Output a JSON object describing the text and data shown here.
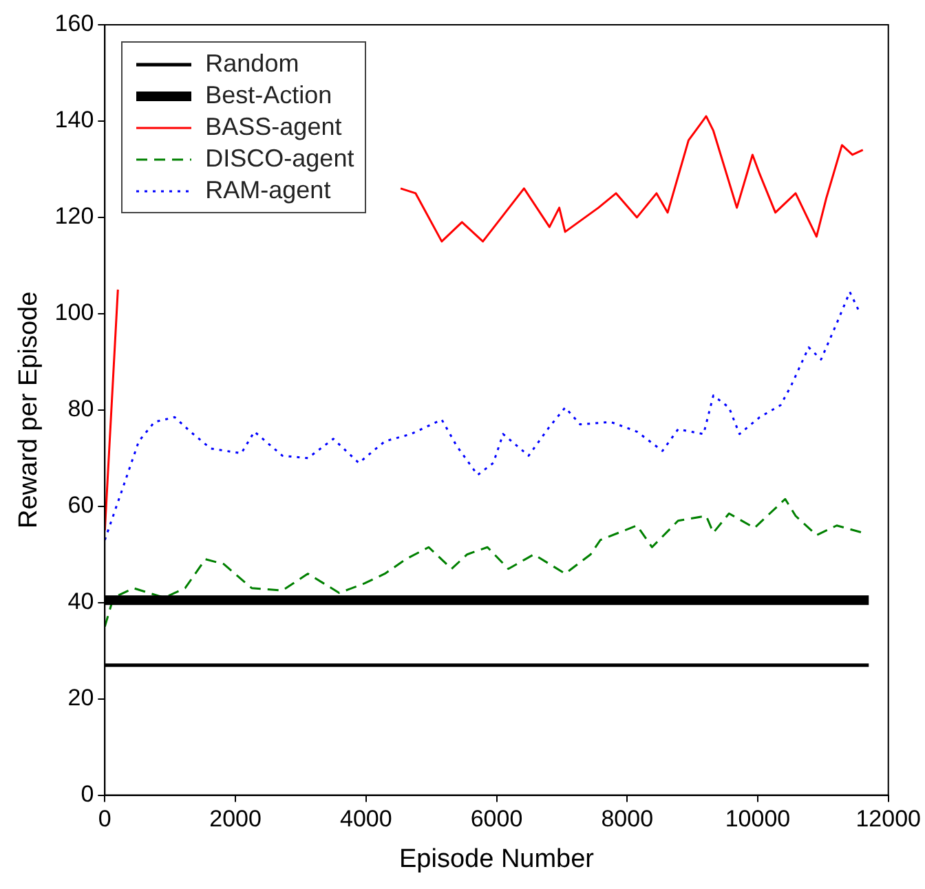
{
  "chart_data": {
    "type": "line",
    "xlabel": "Episode Number",
    "ylabel": "Reward per Episode",
    "xlim": [
      0,
      12000
    ],
    "xticks": [
      0,
      2000,
      4000,
      6000,
      8000,
      10000,
      12000
    ],
    "ylim": [
      0,
      160
    ],
    "yticks": [
      0,
      20,
      40,
      60,
      80,
      100,
      120,
      140,
      160
    ],
    "grid": false,
    "legend": "top left",
    "marker": "none",
    "series": [
      {
        "name": "Random",
        "color": "#000000",
        "line_style": "solid",
        "x": [
          0,
          11700
        ],
        "values": [
          27,
          27
        ]
      },
      {
        "name": "Best-Action",
        "color": "#000000",
        "line_style": "solid",
        "x": [
          0,
          11700
        ],
        "values": [
          40.5,
          40.5
        ]
      },
      {
        "name": "BASS-agent",
        "color": "#ff0000",
        "line_style": "solid",
        "x": [
          0,
          100,
          200,
          300,
          4530,
          4760,
          5160,
          5470,
          5790,
          6420,
          6810,
          6960,
          7050,
          7560,
          7830,
          8150,
          8450,
          8620,
          8940,
          9210,
          9320,
          9680,
          9920,
          10030,
          10270,
          10580,
          10900,
          11050,
          11290,
          11450,
          11610
        ],
        "values": [
          55,
          80,
          105,
          null,
          126,
          125,
          115,
          119,
          115,
          126,
          118,
          122,
          117,
          122,
          125,
          120,
          125,
          121,
          136,
          141,
          138,
          122,
          133,
          129,
          121,
          125,
          116,
          124,
          135,
          133,
          134
        ]
      },
      {
        "name": "DISCO-agent",
        "color": "#008000",
        "line_style": "dashed",
        "x": [
          0,
          130,
          440,
          910,
          1230,
          1540,
          1820,
          2250,
          2720,
          3110,
          3590,
          3980,
          4290,
          4610,
          4960,
          5310,
          5550,
          5860,
          6180,
          6570,
          7050,
          7440,
          7590,
          8150,
          8380,
          8780,
          9210,
          9320,
          9560,
          9950,
          10420,
          10580,
          10900,
          11210,
          11610
        ],
        "values": [
          35,
          41,
          43,
          41,
          43,
          49,
          48,
          43,
          42.5,
          46,
          42,
          44,
          46,
          49,
          51.5,
          47,
          50,
          51.5,
          47,
          50,
          46,
          50,
          53,
          56,
          51.5,
          57,
          58,
          54.5,
          58.5,
          55.5,
          61.5,
          58,
          54,
          56,
          54.5
        ]
      },
      {
        "name": "RAM-agent",
        "color": "#0000ff",
        "line_style": "dotted",
        "x": [
          0,
          280,
          520,
          760,
          1070,
          1310,
          1620,
          2090,
          2290,
          2720,
          3110,
          3500,
          3890,
          4290,
          4690,
          5160,
          5390,
          5710,
          5950,
          6100,
          6490,
          6810,
          7050,
          7280,
          7750,
          8150,
          8540,
          8780,
          9170,
          9320,
          9560,
          9720,
          10030,
          10350,
          10510,
          10780,
          10970,
          11210,
          11410,
          11570
        ],
        "values": [
          53,
          64,
          73.5,
          77.5,
          78.5,
          75.5,
          72,
          71,
          75.5,
          70.5,
          70,
          74,
          69,
          73.5,
          75,
          78,
          72.5,
          66.5,
          69,
          75,
          70.5,
          76.5,
          80.5,
          77,
          77.5,
          75.5,
          71.5,
          76,
          75,
          83,
          80.5,
          75,
          78.5,
          81,
          85,
          93,
          90.5,
          98,
          104.5,
          100
        ]
      }
    ]
  }
}
